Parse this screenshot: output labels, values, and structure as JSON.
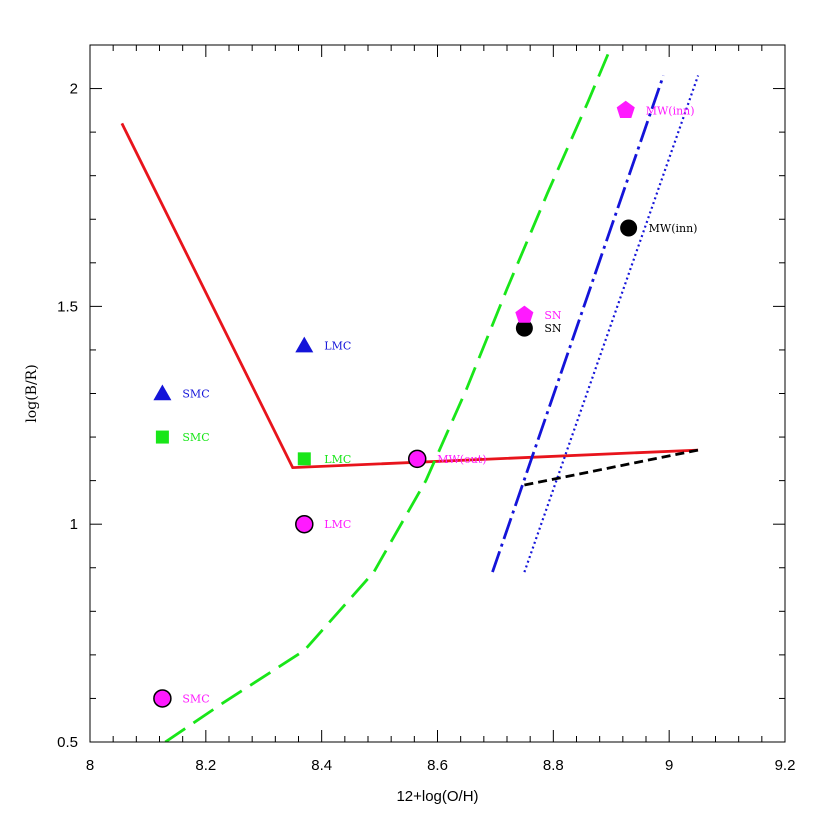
{
  "chart_data": {
    "type": "scatter",
    "title": "",
    "xlabel": "12+log(O/H)",
    "ylabel": "log(B/R)",
    "xlim": [
      8.0,
      9.2
    ],
    "ylim": [
      0.5,
      2.1
    ],
    "x_ticks": [
      "8",
      "8.2",
      "8.4",
      "8.6",
      "8.8",
      "9",
      "9.2"
    ],
    "y_ticks": [
      "0.5",
      "1",
      "1.5",
      "2"
    ],
    "grid": false,
    "colors": {
      "red": "#e8141c",
      "green": "#19e619",
      "blue": "#1414d9",
      "magenta": "#ff1aff",
      "black": "#000000"
    },
    "lines": [
      {
        "style": "solid",
        "color": "red",
        "points": [
          [
            8.055,
            1.92
          ],
          [
            8.35,
            1.13
          ],
          [
            9.05,
            1.17
          ]
        ]
      },
      {
        "style": "long-dash",
        "color": "green",
        "points": [
          [
            8.13,
            0.5
          ],
          [
            8.23,
            0.59
          ],
          [
            8.37,
            0.71
          ],
          [
            8.49,
            0.89
          ],
          [
            8.58,
            1.1
          ],
          [
            8.65,
            1.31
          ],
          [
            8.72,
            1.54
          ],
          [
            8.79,
            1.76
          ],
          [
            8.86,
            1.97
          ],
          [
            8.92,
            2.16
          ]
        ]
      },
      {
        "style": "dash-dot",
        "color": "blue",
        "points": [
          [
            8.695,
            0.89
          ],
          [
            8.99,
            2.03
          ]
        ]
      },
      {
        "style": "dotted",
        "color": "blue",
        "points": [
          [
            8.75,
            0.89
          ],
          [
            9.05,
            2.03
          ]
        ]
      },
      {
        "style": "short-dash",
        "color": "black",
        "points": [
          [
            8.75,
            1.09
          ],
          [
            9.05,
            1.17
          ]
        ]
      }
    ],
    "points": [
      {
        "x": 8.125,
        "y": 1.3,
        "marker": "triangle",
        "color": "blue",
        "label": "SMC",
        "label_color": "blue"
      },
      {
        "x": 8.37,
        "y": 1.41,
        "marker": "triangle",
        "color": "blue",
        "label": "LMC",
        "label_color": "blue"
      },
      {
        "x": 8.125,
        "y": 1.2,
        "marker": "square",
        "color": "green",
        "label": "SMC",
        "label_color": "green"
      },
      {
        "x": 8.37,
        "y": 1.15,
        "marker": "square",
        "color": "green",
        "label": "LMC",
        "label_color": "green"
      },
      {
        "x": 8.125,
        "y": 0.6,
        "marker": "circle-outline",
        "color": "magenta",
        "label": "SMC",
        "label_color": "magenta"
      },
      {
        "x": 8.37,
        "y": 1.0,
        "marker": "circle-outline",
        "color": "magenta",
        "label": "LMC",
        "label_color": "magenta"
      },
      {
        "x": 8.565,
        "y": 1.15,
        "marker": "circle-outline",
        "color": "magenta",
        "label": "MW(out)",
        "label_color": "magenta"
      },
      {
        "x": 8.75,
        "y": 1.45,
        "marker": "circle",
        "color": "black",
        "label": "SN",
        "label_color": "black"
      },
      {
        "x": 8.93,
        "y": 1.68,
        "marker": "circle",
        "color": "black",
        "label": "MW(inn)",
        "label_color": "black"
      },
      {
        "x": 8.75,
        "y": 1.48,
        "marker": "pentagon",
        "color": "magenta",
        "label": "SN",
        "label_color": "magenta"
      },
      {
        "x": 8.925,
        "y": 1.95,
        "marker": "pentagon",
        "color": "magenta",
        "label": "MW(inn)",
        "label_color": "magenta"
      }
    ]
  }
}
